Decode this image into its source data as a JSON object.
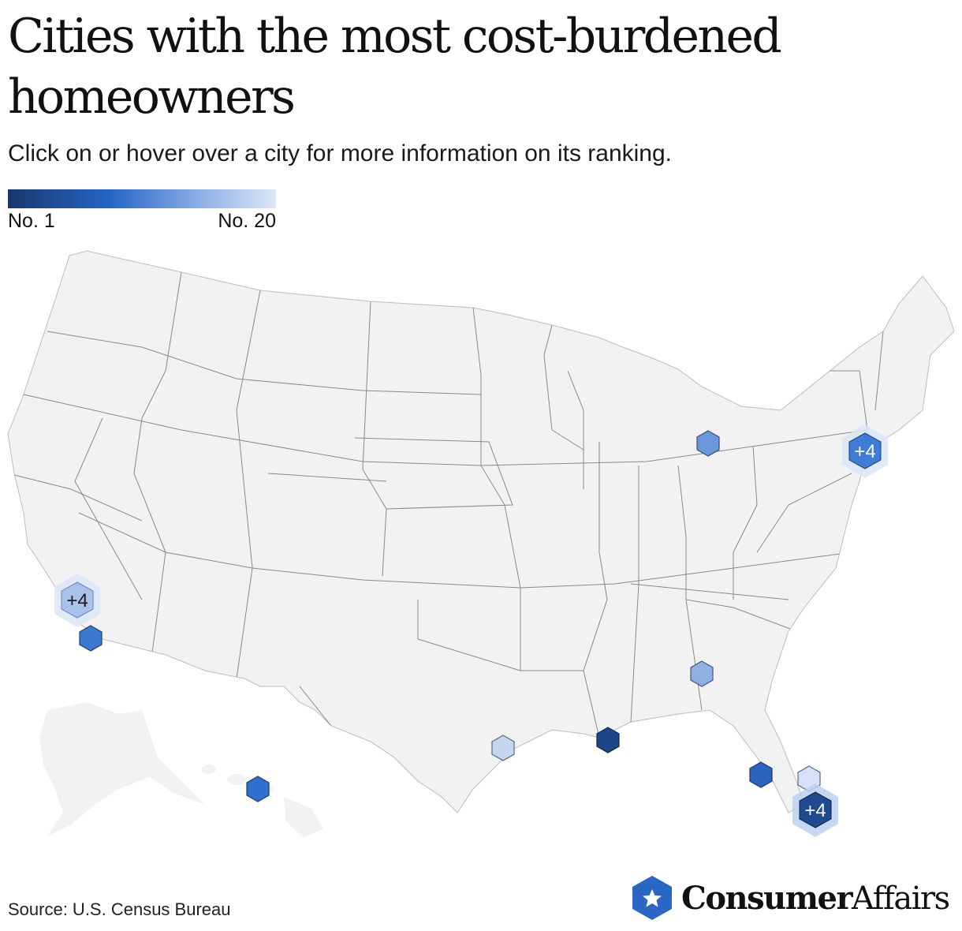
{
  "title": "Cities with the most cost-burdened homeowners",
  "subtitle": "Click on or hover over a city for more information on its ranking.",
  "legend": {
    "high_label": "No. 1",
    "low_label": "No. 20"
  },
  "source": "Source: U.S. Census Bureau",
  "brand": {
    "name_bold": "Consumer",
    "name_regular": "Affairs",
    "icon": "star-hexagon-icon"
  },
  "colors": {
    "rank_1": "#17386d",
    "rank_mid": "#2465c7",
    "rank_20": "#dbe6f7",
    "land": "#f2f2f2",
    "borders": "#8a8a8a"
  },
  "cluster_label": "+4",
  "map_markers": [
    {
      "name": "los-angeles-cluster",
      "cluster": true,
      "label": "+4"
    },
    {
      "name": "san-diego",
      "cluster": false
    },
    {
      "name": "honolulu",
      "cluster": false
    },
    {
      "name": "houston",
      "cluster": false
    },
    {
      "name": "new-orleans",
      "cluster": false
    },
    {
      "name": "atlanta",
      "cluster": false
    },
    {
      "name": "detroit",
      "cluster": false
    },
    {
      "name": "new-york-cluster",
      "cluster": true,
      "label": "+4"
    },
    {
      "name": "tampa",
      "cluster": false
    },
    {
      "name": "west-palm-beach",
      "cluster": false
    },
    {
      "name": "miami-cluster",
      "cluster": true,
      "label": "+4"
    }
  ]
}
